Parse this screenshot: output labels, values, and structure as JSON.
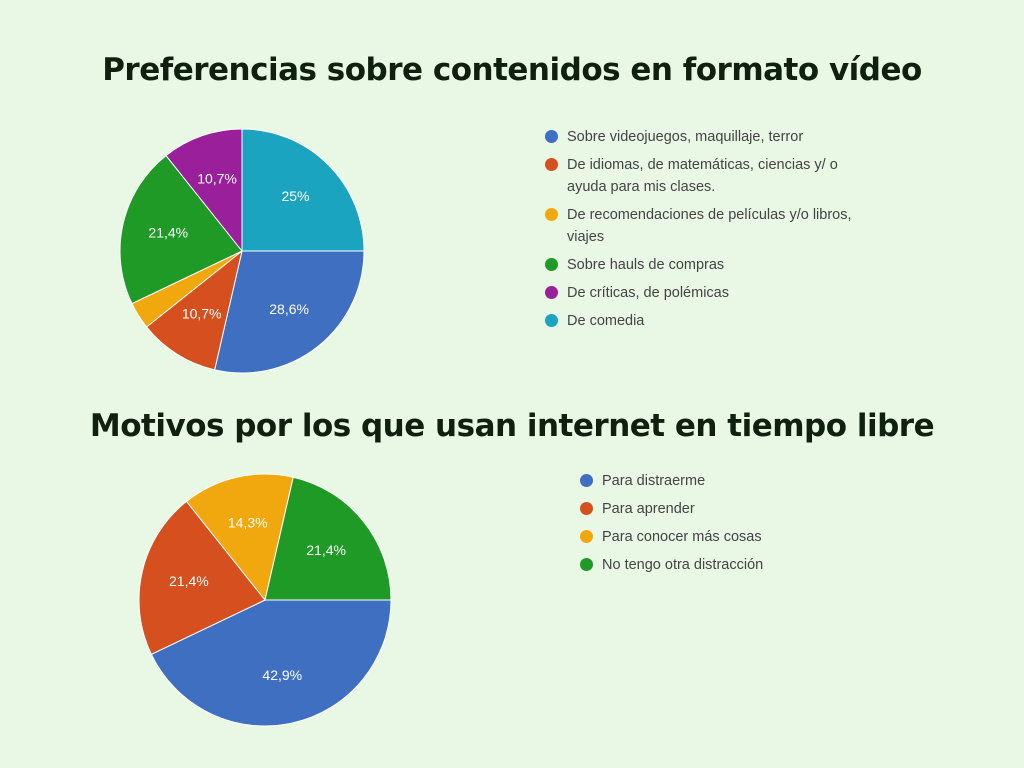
{
  "chart_data": [
    {
      "type": "pie",
      "title": "Preferencias sobre contenidos en formato vídeo",
      "categories": [
        "Sobre videojuegos, maquillaje, terror",
        "De idiomas, de matemáticas, ciencias y/ o ayuda para mis clases.",
        "De recomendaciones de películas y/o libros, viajes",
        "Sobre hauls de compras",
        "De críticas, de polémicas",
        "De comedia"
      ],
      "values": [
        28.6,
        10.7,
        3.6,
        21.4,
        10.7,
        25
      ],
      "value_labels": [
        "28,6%",
        "10,7%",
        null,
        "21,4%",
        "10,7%",
        "25%"
      ],
      "colors": [
        "#3f6fc0",
        "#d5501e",
        "#f1a80e",
        "#1f9a26",
        "#991f9b",
        "#1ba4c0"
      ]
    },
    {
      "type": "pie",
      "title": "Motivos por los que usan internet en tiempo libre",
      "categories": [
        "Para distraerme",
        "Para aprender",
        "Para conocer más cosas",
        "No tengo otra distracción"
      ],
      "values": [
        42.9,
        21.4,
        14.3,
        21.4
      ],
      "value_labels": [
        "42,9%",
        "21,4%",
        "14,3%",
        "21,4%"
      ],
      "colors": [
        "#3f6fc0",
        "#d5501e",
        "#f1a80e",
        "#1f9a26"
      ]
    }
  ]
}
